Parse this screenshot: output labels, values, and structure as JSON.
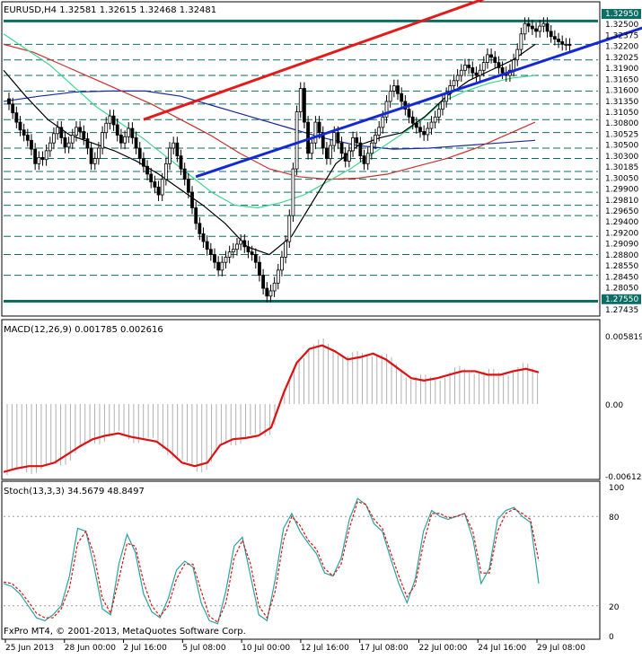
{
  "main_header": "EURUSD,H4  1.32581 1.32615 1.32468 1.32481",
  "macd_header": "MACD(12,26,9) 0.001785 0.002616",
  "stoch_header": "Stoch(13,3,3) 34.5679 48.8497",
  "copyright": "FxPro MT4, © 2001-2013, MetaQuotes Software Corp.",
  "colors": {
    "price": "#000000",
    "resistance": "#e41a1a",
    "support": "#1428d6",
    "hline": "#0b6e64",
    "ma_black": "#000000",
    "ma_green": "#3fd58f",
    "ma_red": "#c83030",
    "ma_blue": "#1a2a9a",
    "macd_signal": "#dd1111",
    "macd_hist": "#b0b0b0",
    "stoch_main": "#2aa3a0",
    "stoch_signal": "#dd1111",
    "badge": "#0b6e64"
  },
  "chart_data": [
    {
      "type": "candlestick",
      "title": "EURUSD,H4",
      "ohlc_readout": {
        "open": 1.32581,
        "high": 1.32615,
        "low": 1.32468,
        "close": 1.32481
      },
      "ylim": [
        1.273,
        1.3325
      ],
      "x_tick_labels": [
        "25 Jun 2013",
        "28 Jun 00:00",
        "2 Jul 16:00",
        "5 Jul 08:00",
        "10 Jul 00:00",
        "12 Jul 16:00",
        "17 Jul 08:00",
        "22 Jul 00:00",
        "24 Jul 16:00",
        "29 Jul 08:00"
      ],
      "level_labels": [
        "1.32950",
        "1.32500",
        "1.32375",
        "1.32200",
        "1.32025",
        "1.31900",
        "1.31650",
        "1.31600",
        "1.31350",
        "1.31050",
        "1.30800",
        "1.30525",
        "1.30500",
        "1.30300",
        "1.30185",
        "1.30050",
        "1.29900",
        "1.29810",
        "1.29650",
        "1.29400",
        "1.29200",
        "1.29090",
        "1.28800",
        "1.28550",
        "1.28450",
        "1.28050",
        "1.27550",
        "1.27435"
      ],
      "horizontal_levels": [
        1.3295,
        1.325,
        1.322,
        1.319,
        1.316,
        1.3135,
        1.3105,
        1.308,
        1.305,
        1.303,
        1.3005,
        1.299,
        1.2965,
        1.294,
        1.292,
        1.288,
        1.2845,
        1.2805,
        1.2755
      ],
      "highlighted_levels": [
        "1.32950",
        "1.27550"
      ],
      "trendlines": [
        {
          "color": "resistance",
          "from": [
            96,
            1.3105
          ],
          "to": [
            170,
            1.3345
          ]
        },
        {
          "color": "support",
          "from": [
            110,
            1.2995
          ],
          "to": [
            215,
            1.3295
          ]
        }
      ],
      "price_close": [
        1.3135,
        1.3118,
        1.31,
        1.3085,
        1.3075,
        1.3065,
        1.3048,
        1.302,
        1.3032,
        1.3028,
        1.3045,
        1.306,
        1.3078,
        1.309,
        1.307,
        1.3052,
        1.306,
        1.3075,
        1.309,
        1.3082,
        1.3068,
        1.305,
        1.302,
        1.303,
        1.305,
        1.308,
        1.3098,
        1.3112,
        1.3095,
        1.3075,
        1.306,
        1.3072,
        1.3088,
        1.307,
        1.305,
        1.303,
        1.3015,
        1.3,
        1.2985,
        1.2975,
        1.296,
        1.299,
        1.302,
        1.305,
        1.306,
        1.3035,
        1.301,
        1.299,
        1.2965,
        1.2935,
        1.2905,
        1.2885,
        1.287,
        1.2855,
        1.2845,
        1.283,
        1.2815,
        1.283,
        1.284,
        1.285,
        1.2855,
        1.2865,
        1.2872,
        1.286,
        1.285,
        1.2845,
        1.283,
        1.2805,
        1.278,
        1.2765,
        1.2775,
        1.279,
        1.2815,
        1.284,
        1.287,
        1.292,
        1.301,
        1.312,
        1.3165,
        1.31,
        1.304,
        1.306,
        1.31,
        1.308,
        1.305,
        1.303,
        1.3055,
        1.308,
        1.306,
        1.304,
        1.3025,
        1.3045,
        1.307,
        1.306,
        1.3035,
        1.302,
        1.304,
        1.306,
        1.3075,
        1.309,
        1.311,
        1.314,
        1.316,
        1.317,
        1.3155,
        1.314,
        1.3125,
        1.311,
        1.3098,
        1.309,
        1.3082,
        1.3076,
        1.3088,
        1.31,
        1.311,
        1.3125,
        1.314,
        1.3155,
        1.317,
        1.318,
        1.319,
        1.32,
        1.321,
        1.3205,
        1.3195,
        1.319,
        1.32,
        1.3215,
        1.323,
        1.3225,
        1.3215,
        1.3205,
        1.3195,
        1.319,
        1.32,
        1.322,
        1.324,
        1.327,
        1.329,
        1.3285,
        1.328,
        1.3275,
        1.3285,
        1.329,
        1.3275,
        1.3265,
        1.326,
        1.3255,
        1.325,
        1.325,
        1.3248
      ],
      "ma_black": [
        1.32,
        1.315,
        1.3105,
        1.3075,
        1.306,
        1.3045,
        1.3025,
        1.3,
        1.297,
        1.294,
        1.2905,
        1.286,
        1.2845,
        1.288,
        1.295,
        1.302,
        1.3055,
        1.307,
        1.308,
        1.311,
        1.315,
        1.318,
        1.32,
        1.322,
        1.325
      ],
      "ma_green": [
        1.327,
        1.324,
        1.321,
        1.317,
        1.313,
        1.31,
        1.307,
        1.3035,
        1.3,
        1.2965,
        1.294,
        1.2935,
        1.2945,
        1.296,
        1.2985,
        1.301,
        1.304,
        1.307,
        1.31,
        1.314,
        1.316,
        1.3175,
        1.3185,
        1.319
      ],
      "ma_red": [
        1.325,
        1.3235,
        1.321,
        1.3185,
        1.316,
        1.3135,
        1.3105,
        1.3075,
        1.304,
        1.301,
        1.2995,
        1.299,
        1.2992,
        1.3,
        1.3015,
        1.303,
        1.305,
        1.3075,
        1.31
      ],
      "ma_blue": [
        1.314,
        1.315,
        1.3158,
        1.316,
        1.316,
        1.315,
        1.313,
        1.311,
        1.309,
        1.307,
        1.3055,
        1.3048,
        1.305,
        1.3055,
        1.306,
        1.3065
      ]
    },
    {
      "type": "bar",
      "title": "MACD(12,26,9)",
      "values_readout": {
        "macd": 0.001785,
        "signal": 0.002616
      },
      "y_tick_labels": [
        "0.005819",
        "0.00",
        "-0.006127"
      ],
      "ylim": [
        -0.006127,
        0.005819
      ],
      "signal": [
        -0.0058,
        -0.0055,
        -0.0053,
        -0.0053,
        -0.005,
        -0.0043,
        -0.0036,
        -0.003,
        -0.0027,
        -0.0025,
        -0.0028,
        -0.003,
        -0.0032,
        -0.004,
        -0.005,
        -0.0053,
        -0.005,
        -0.0035,
        -0.003,
        -0.0029,
        -0.0027,
        -0.002,
        0.001,
        0.0035,
        0.0047,
        0.005,
        0.0045,
        0.0038,
        0.004,
        0.0043,
        0.0038,
        0.003,
        0.0022,
        0.002,
        0.0022,
        0.0025,
        0.0028,
        0.0028,
        0.0025,
        0.0025,
        0.0028,
        0.003,
        0.0027
      ]
    },
    {
      "type": "line",
      "title": "Stoch(13,3,3)",
      "values_readout": {
        "main": 34.5679,
        "signal": 48.8497
      },
      "y_tick_labels": [
        "100",
        "80",
        "20",
        "0"
      ],
      "ylim": [
        0,
        100
      ],
      "series": [
        {
          "name": "%K",
          "values": [
            35,
            33,
            28,
            20,
            12,
            10,
            14,
            20,
            40,
            72,
            70,
            46,
            18,
            14,
            48,
            68,
            56,
            28,
            16,
            12,
            25,
            44,
            50,
            46,
            22,
            10,
            8,
            30,
            60,
            66,
            40,
            14,
            10,
            38,
            72,
            82,
            70,
            62,
            55,
            42,
            40,
            52,
            78,
            92,
            88,
            75,
            70,
            52,
            35,
            22,
            38,
            70,
            84,
            80,
            78,
            80,
            82,
            65,
            35,
            45,
            78,
            84,
            86,
            80,
            76,
            35
          ]
        },
        {
          "name": "%D",
          "values": [
            36,
            35,
            30,
            23,
            15,
            12,
            12,
            18,
            32,
            62,
            70,
            54,
            25,
            15,
            38,
            62,
            60,
            36,
            20,
            13,
            20,
            38,
            48,
            48,
            30,
            13,
            9,
            22,
            52,
            64,
            48,
            20,
            12,
            30,
            64,
            80,
            74,
            64,
            58,
            45,
            40,
            48,
            72,
            90,
            88,
            78,
            72,
            56,
            40,
            26,
            34,
            62,
            82,
            82,
            79,
            80,
            82,
            70,
            42,
            42,
            70,
            82,
            85,
            82,
            78,
            50
          ]
        }
      ]
    }
  ]
}
